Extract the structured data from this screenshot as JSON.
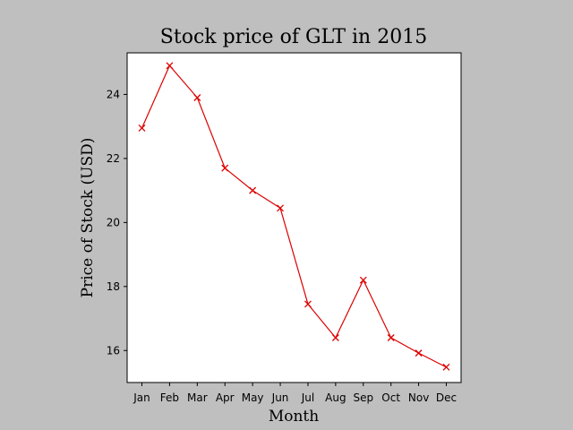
{
  "chart_data": {
    "type": "line",
    "title": "Stock price of GLT in 2015",
    "xlabel": "Month",
    "ylabel": "Price of Stock (USD)",
    "categories": [
      "Jan",
      "Feb",
      "Mar",
      "Apr",
      "May",
      "Jun",
      "Jul",
      "Aug",
      "Sep",
      "Oct",
      "Nov",
      "Dec"
    ],
    "series": [
      {
        "values": [
          22.95,
          24.9,
          23.9,
          21.7,
          21.0,
          20.45,
          17.45,
          16.4,
          18.2,
          16.4,
          15.92,
          15.48
        ],
        "color": "#dd0000",
        "marker": "x"
      }
    ],
    "ylim": [
      15.0,
      25.3
    ],
    "yticks": [
      16,
      18,
      20,
      22,
      24
    ],
    "grid": false,
    "background": "#bfbfbf",
    "plot_background": "#ffffff"
  }
}
